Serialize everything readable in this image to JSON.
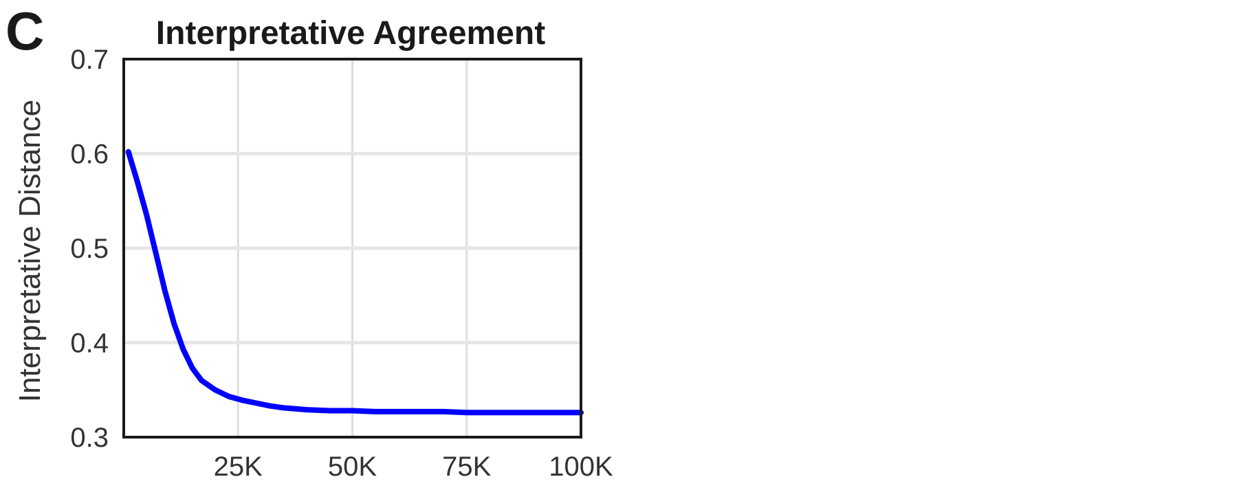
{
  "panel_label": "C",
  "chart_data": {
    "type": "line",
    "title": "Interpretative Agreement",
    "xlabel": "",
    "ylabel": "Interpretative Distance",
    "xlim": [
      0,
      100000
    ],
    "ylim": [
      0.3,
      0.7
    ],
    "x_ticks": [
      25000,
      50000,
      75000,
      100000
    ],
    "x_tick_labels": [
      "25K",
      "50K",
      "75K",
      "100K"
    ],
    "y_ticks": [
      0.3,
      0.4,
      0.5,
      0.6,
      0.7
    ],
    "y_tick_labels": [
      "0.3",
      "0.4",
      "0.5",
      "0.6",
      "0.7"
    ],
    "grid": true,
    "series": [
      {
        "color": "#0000ff",
        "x": [
          1000,
          3000,
          5000,
          7000,
          9000,
          11000,
          13000,
          15000,
          17000,
          20000,
          23000,
          26000,
          29000,
          32000,
          35000,
          40000,
          45000,
          50000,
          55000,
          60000,
          65000,
          70000,
          75000,
          80000,
          85000,
          90000,
          95000,
          100000
        ],
        "y": [
          0.602,
          0.57,
          0.535,
          0.495,
          0.455,
          0.42,
          0.393,
          0.373,
          0.36,
          0.35,
          0.343,
          0.339,
          0.336,
          0.333,
          0.331,
          0.329,
          0.328,
          0.328,
          0.327,
          0.327,
          0.327,
          0.327,
          0.326,
          0.326,
          0.326,
          0.326,
          0.326,
          0.326
        ]
      }
    ]
  }
}
